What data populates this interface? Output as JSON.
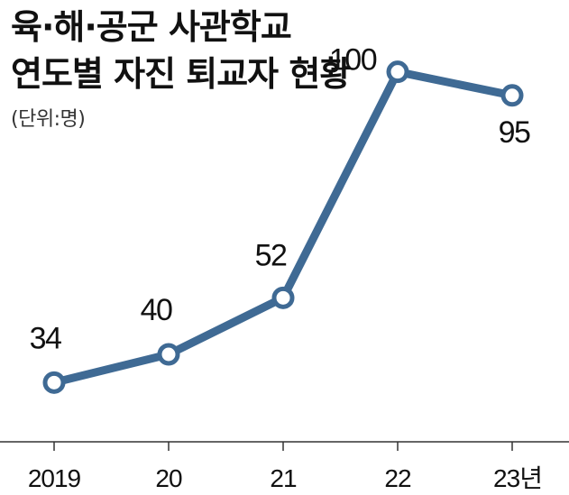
{
  "chart_data": {
    "type": "line",
    "title_lines": [
      "육·해·공군 사관학교",
      "연도별 자진 퇴교자 현황"
    ],
    "unit": "(단위:명)",
    "categories": [
      "2019",
      "20",
      "21",
      "22",
      "23년"
    ],
    "series": [
      {
        "values": [
          34,
          40,
          52,
          100,
          95
        ]
      }
    ],
    "ylim": [
      22,
      112
    ],
    "grid": false,
    "legend": "none",
    "colors": {
      "line": "#3f6a94",
      "axis": "#333333",
      "text": "#111111"
    }
  }
}
